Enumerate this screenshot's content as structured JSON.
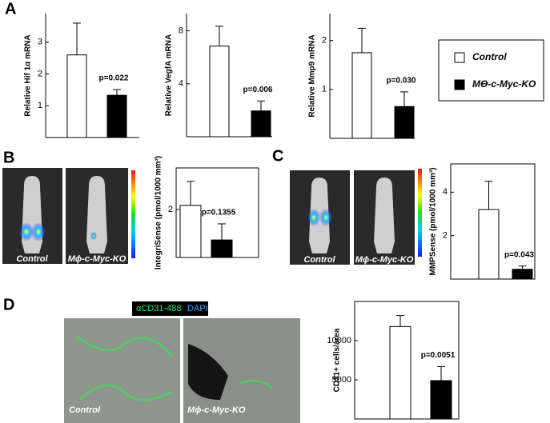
{
  "labels": {
    "a": "A",
    "b": "B",
    "c": "C",
    "d": "D"
  },
  "captions": {
    "b_control": "Control",
    "b_ko": "Mϕ-c-Myc-KO",
    "c_control": "Control",
    "c_ko": "Mϕ-c-Myc-KO",
    "d_control": "Control",
    "d_ko": "Mϕ-c-Myc-KO",
    "d_stain1": "αCD31-488",
    "d_stain2": "DAPI"
  },
  "legend": [
    {
      "name": "Control",
      "color": "#ffffff"
    },
    {
      "name": "Mϴ-c-Myc-KO",
      "color": "#000000"
    }
  ],
  "chart_data": [
    {
      "type": "bar",
      "ylabel": "Relative Hif 1α mRNA",
      "values": [
        2.6,
        1.33
      ],
      "errors": [
        1.0,
        0.18
      ],
      "colors": [
        "#ffffff",
        "#000000"
      ],
      "annotation": "p=0.022",
      "ylim": [
        0,
        3.9
      ],
      "yticks": [
        1,
        2,
        3
      ],
      "frame": false
    },
    {
      "type": "bar",
      "ylabel": "Relative VegfA mRNA",
      "values": [
        6.85,
        1.95
      ],
      "errors": [
        1.5,
        0.75
      ],
      "colors": [
        "#ffffff",
        "#000000"
      ],
      "annotation": "p=0.006",
      "ylim": [
        0,
        9.3
      ],
      "yticks": [
        4,
        8
      ],
      "frame": false
    },
    {
      "type": "bar",
      "ylabel": "Relative Mmp9 mRNA",
      "values": [
        1.75,
        0.65
      ],
      "errors": [
        0.5,
        0.3
      ],
      "colors": [
        "#ffffff",
        "#000000"
      ],
      "annotation": "p=0.030",
      "ylim": [
        0,
        2.55
      ],
      "yticks": [
        1,
        2
      ],
      "frame": false
    },
    {
      "type": "bar",
      "ylabel": "IntegriSense (pmol/1000 mm³)",
      "values": [
        2.17,
        0.73
      ],
      "errors": [
        1.0,
        0.67
      ],
      "colors": [
        "#ffffff",
        "#000000"
      ],
      "annotation": "p=0.1355",
      "ylim": [
        0,
        3.73
      ],
      "yticks": [
        2
      ],
      "frame": true
    },
    {
      "type": "bar",
      "ylabel": "MMPSense (pmol/1000 mm³)",
      "values": [
        3.2,
        0.45
      ],
      "errors": [
        1.3,
        0.15
      ],
      "colors": [
        "#ffffff",
        "#000000"
      ],
      "annotation": "p=0.043",
      "ylim": [
        0,
        5.3
      ],
      "yticks": [
        2,
        4
      ],
      "frame": true
    },
    {
      "type": "bar",
      "ylabel": "CD31+ cells/area",
      "values": [
        11800,
        4900
      ],
      "errors": [
        1400,
        1800
      ],
      "colors": [
        "#ffffff",
        "#000000"
      ],
      "annotation": "p=0.0051",
      "ylim": [
        0,
        15000
      ],
      "yticks": [
        5000,
        10000
      ],
      "frame": true
    }
  ]
}
